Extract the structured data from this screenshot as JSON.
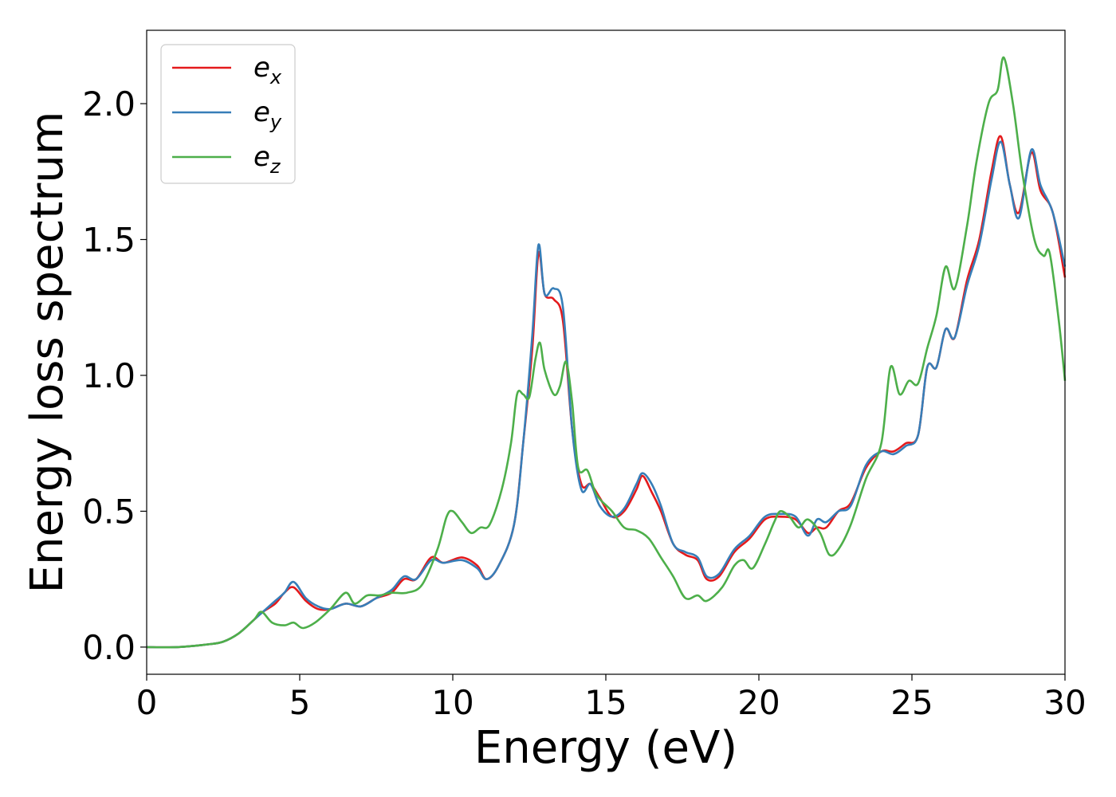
{
  "chart_data": {
    "type": "line",
    "xlabel": "Energy (eV)",
    "ylabel": "Energy loss spectrum",
    "xlim": [
      0,
      30
    ],
    "ylim": [
      -0.1,
      2.27
    ],
    "xticks": [
      0,
      5,
      10,
      15,
      20,
      25,
      30
    ],
    "xtick_labels": [
      "0",
      "5",
      "10",
      "15",
      "20",
      "25",
      "30"
    ],
    "yticks": [
      0.0,
      0.5,
      1.0,
      1.5,
      2.0
    ],
    "ytick_labels": [
      "0.0",
      "0.5",
      "1.0",
      "1.5",
      "2.0"
    ],
    "grid": false,
    "legend_position": "top-left",
    "series": [
      {
        "name": "e",
        "sub": "x",
        "color": "#e41a1c",
        "points": [
          [
            0,
            0
          ],
          [
            1,
            0
          ],
          [
            2,
            0.01
          ],
          [
            2.5,
            0.02
          ],
          [
            3,
            0.05
          ],
          [
            3.5,
            0.1
          ],
          [
            3.8,
            0.13
          ],
          [
            4.2,
            0.16
          ],
          [
            4.5,
            0.2
          ],
          [
            4.8,
            0.22
          ],
          [
            5.2,
            0.17
          ],
          [
            5.6,
            0.14
          ],
          [
            6,
            0.14
          ],
          [
            6.5,
            0.16
          ],
          [
            7,
            0.15
          ],
          [
            7.5,
            0.18
          ],
          [
            8,
            0.2
          ],
          [
            8.4,
            0.25
          ],
          [
            8.8,
            0.25
          ],
          [
            9.3,
            0.33
          ],
          [
            9.7,
            0.31
          ],
          [
            10.3,
            0.33
          ],
          [
            10.8,
            0.3
          ],
          [
            11.1,
            0.25
          ],
          [
            11.5,
            0.3
          ],
          [
            12,
            0.45
          ],
          [
            12.3,
            0.75
          ],
          [
            12.6,
            1.1
          ],
          [
            12.8,
            1.45
          ],
          [
            13,
            1.3
          ],
          [
            13.3,
            1.28
          ],
          [
            13.6,
            1.2
          ],
          [
            13.9,
            0.8
          ],
          [
            14.2,
            0.6
          ],
          [
            14.5,
            0.6
          ],
          [
            14.8,
            0.55
          ],
          [
            15.2,
            0.48
          ],
          [
            15.6,
            0.5
          ],
          [
            16,
            0.58
          ],
          [
            16.2,
            0.63
          ],
          [
            16.5,
            0.57
          ],
          [
            16.8,
            0.5
          ],
          [
            17.2,
            0.38
          ],
          [
            17.6,
            0.34
          ],
          [
            18,
            0.32
          ],
          [
            18.3,
            0.25
          ],
          [
            18.7,
            0.26
          ],
          [
            19.2,
            0.35
          ],
          [
            19.7,
            0.4
          ],
          [
            20.2,
            0.47
          ],
          [
            20.7,
            0.48
          ],
          [
            21.2,
            0.47
          ],
          [
            21.6,
            0.42
          ],
          [
            21.9,
            0.44
          ],
          [
            22.2,
            0.44
          ],
          [
            22.6,
            0.5
          ],
          [
            23,
            0.53
          ],
          [
            23.5,
            0.66
          ],
          [
            24,
            0.72
          ],
          [
            24.4,
            0.72
          ],
          [
            24.8,
            0.75
          ],
          [
            25.2,
            0.78
          ],
          [
            25.5,
            1.03
          ],
          [
            25.8,
            1.03
          ],
          [
            26.1,
            1.17
          ],
          [
            26.4,
            1.14
          ],
          [
            26.8,
            1.35
          ],
          [
            27.2,
            1.5
          ],
          [
            27.6,
            1.75
          ],
          [
            27.9,
            1.88
          ],
          [
            28.2,
            1.7
          ],
          [
            28.5,
            1.6
          ],
          [
            28.9,
            1.82
          ],
          [
            29.2,
            1.68
          ],
          [
            29.6,
            1.6
          ],
          [
            30,
            1.36
          ]
        ]
      },
      {
        "name": "e",
        "sub": "y",
        "color": "#377eb8",
        "points": [
          [
            0,
            0
          ],
          [
            1,
            0
          ],
          [
            2,
            0.01
          ],
          [
            2.5,
            0.02
          ],
          [
            3,
            0.05
          ],
          [
            3.5,
            0.1
          ],
          [
            3.8,
            0.13
          ],
          [
            4.2,
            0.17
          ],
          [
            4.5,
            0.2
          ],
          [
            4.8,
            0.24
          ],
          [
            5.2,
            0.18
          ],
          [
            5.6,
            0.15
          ],
          [
            6,
            0.14
          ],
          [
            6.5,
            0.16
          ],
          [
            7,
            0.15
          ],
          [
            7.5,
            0.18
          ],
          [
            8,
            0.21
          ],
          [
            8.4,
            0.26
          ],
          [
            8.8,
            0.25
          ],
          [
            9.3,
            0.32
          ],
          [
            9.7,
            0.31
          ],
          [
            10.3,
            0.32
          ],
          [
            10.8,
            0.29
          ],
          [
            11.1,
            0.25
          ],
          [
            11.5,
            0.3
          ],
          [
            12,
            0.45
          ],
          [
            12.3,
            0.75
          ],
          [
            12.6,
            1.15
          ],
          [
            12.8,
            1.48
          ],
          [
            13,
            1.3
          ],
          [
            13.3,
            1.32
          ],
          [
            13.6,
            1.25
          ],
          [
            13.9,
            0.8
          ],
          [
            14.2,
            0.58
          ],
          [
            14.5,
            0.6
          ],
          [
            14.8,
            0.52
          ],
          [
            15.2,
            0.48
          ],
          [
            15.6,
            0.51
          ],
          [
            16,
            0.6
          ],
          [
            16.2,
            0.64
          ],
          [
            16.5,
            0.6
          ],
          [
            16.8,
            0.52
          ],
          [
            17.2,
            0.38
          ],
          [
            17.6,
            0.35
          ],
          [
            18,
            0.33
          ],
          [
            18.3,
            0.26
          ],
          [
            18.7,
            0.27
          ],
          [
            19.2,
            0.36
          ],
          [
            19.7,
            0.41
          ],
          [
            20.2,
            0.48
          ],
          [
            20.7,
            0.49
          ],
          [
            21.2,
            0.48
          ],
          [
            21.6,
            0.41
          ],
          [
            21.9,
            0.47
          ],
          [
            22.2,
            0.46
          ],
          [
            22.6,
            0.5
          ],
          [
            23,
            0.52
          ],
          [
            23.5,
            0.67
          ],
          [
            24,
            0.72
          ],
          [
            24.4,
            0.71
          ],
          [
            24.8,
            0.74
          ],
          [
            25.2,
            0.78
          ],
          [
            25.5,
            1.03
          ],
          [
            25.8,
            1.03
          ],
          [
            26.1,
            1.17
          ],
          [
            26.4,
            1.14
          ],
          [
            26.8,
            1.33
          ],
          [
            27.2,
            1.48
          ],
          [
            27.6,
            1.72
          ],
          [
            27.9,
            1.86
          ],
          [
            28.2,
            1.7
          ],
          [
            28.5,
            1.58
          ],
          [
            28.9,
            1.83
          ],
          [
            29.2,
            1.7
          ],
          [
            29.6,
            1.6
          ],
          [
            30,
            1.4
          ]
        ]
      },
      {
        "name": "e",
        "sub": "z",
        "color": "#4daf4a",
        "points": [
          [
            0,
            0
          ],
          [
            1,
            0
          ],
          [
            2,
            0.01
          ],
          [
            2.5,
            0.02
          ],
          [
            3,
            0.05
          ],
          [
            3.5,
            0.1
          ],
          [
            3.75,
            0.13
          ],
          [
            4.1,
            0.09
          ],
          [
            4.5,
            0.08
          ],
          [
            4.8,
            0.09
          ],
          [
            5.1,
            0.07
          ],
          [
            5.5,
            0.09
          ],
          [
            6,
            0.14
          ],
          [
            6.5,
            0.2
          ],
          [
            6.8,
            0.16
          ],
          [
            7.2,
            0.19
          ],
          [
            7.6,
            0.19
          ],
          [
            8,
            0.2
          ],
          [
            8.5,
            0.2
          ],
          [
            9,
            0.23
          ],
          [
            9.5,
            0.36
          ],
          [
            9.8,
            0.48
          ],
          [
            10,
            0.5
          ],
          [
            10.3,
            0.46
          ],
          [
            10.6,
            0.42
          ],
          [
            10.9,
            0.44
          ],
          [
            11.2,
            0.45
          ],
          [
            11.6,
            0.58
          ],
          [
            11.9,
            0.75
          ],
          [
            12.1,
            0.93
          ],
          [
            12.3,
            0.93
          ],
          [
            12.5,
            0.92
          ],
          [
            12.7,
            1.06
          ],
          [
            12.85,
            1.12
          ],
          [
            13,
            1.02
          ],
          [
            13.3,
            0.93
          ],
          [
            13.5,
            0.96
          ],
          [
            13.7,
            1.05
          ],
          [
            13.9,
            0.9
          ],
          [
            14.1,
            0.66
          ],
          [
            14.4,
            0.65
          ],
          [
            14.7,
            0.56
          ],
          [
            15.2,
            0.5
          ],
          [
            15.6,
            0.44
          ],
          [
            16,
            0.43
          ],
          [
            16.4,
            0.4
          ],
          [
            16.8,
            0.33
          ],
          [
            17.2,
            0.26
          ],
          [
            17.6,
            0.18
          ],
          [
            18,
            0.19
          ],
          [
            18.3,
            0.17
          ],
          [
            18.8,
            0.22
          ],
          [
            19.2,
            0.3
          ],
          [
            19.5,
            0.32
          ],
          [
            19.8,
            0.29
          ],
          [
            20.2,
            0.38
          ],
          [
            20.5,
            0.46
          ],
          [
            20.7,
            0.5
          ],
          [
            21,
            0.48
          ],
          [
            21.3,
            0.44
          ],
          [
            21.6,
            0.47
          ],
          [
            22,
            0.42
          ],
          [
            22.3,
            0.34
          ],
          [
            22.6,
            0.36
          ],
          [
            23,
            0.45
          ],
          [
            23.5,
            0.62
          ],
          [
            24,
            0.75
          ],
          [
            24.3,
            1.03
          ],
          [
            24.6,
            0.93
          ],
          [
            24.9,
            0.98
          ],
          [
            25.2,
            0.97
          ],
          [
            25.5,
            1.1
          ],
          [
            25.8,
            1.22
          ],
          [
            26.1,
            1.4
          ],
          [
            26.4,
            1.32
          ],
          [
            26.8,
            1.55
          ],
          [
            27.1,
            1.78
          ],
          [
            27.5,
            2.0
          ],
          [
            27.8,
            2.05
          ],
          [
            28,
            2.17
          ],
          [
            28.3,
            2.0
          ],
          [
            28.6,
            1.75
          ],
          [
            29,
            1.5
          ],
          [
            29.3,
            1.44
          ],
          [
            29.5,
            1.45
          ],
          [
            29.8,
            1.2
          ],
          [
            30,
            0.98
          ]
        ]
      }
    ]
  }
}
